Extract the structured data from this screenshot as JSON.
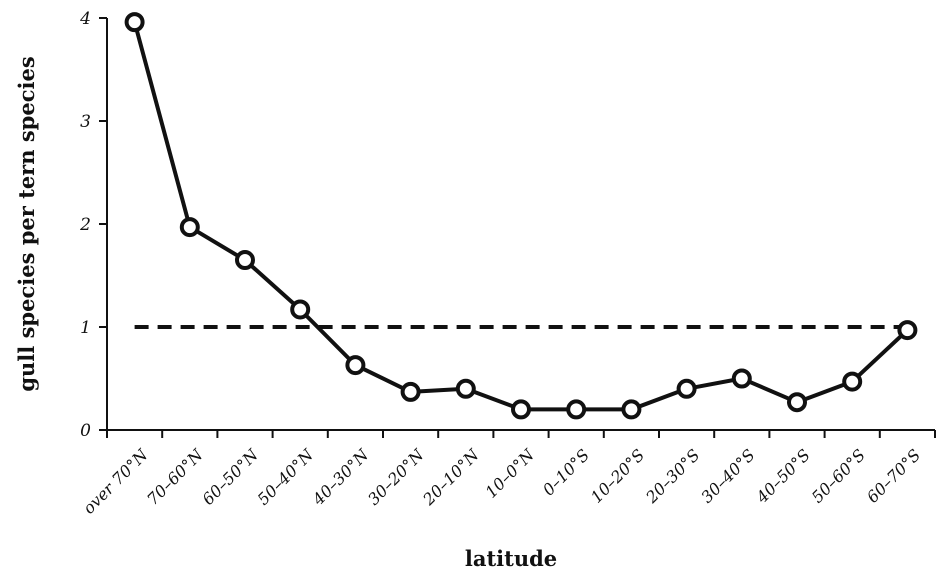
{
  "chart_data": {
    "type": "line",
    "xlabel": "latitude",
    "ylabel": "gull species per tern species",
    "ylim": [
      0,
      4
    ],
    "yticks": [
      "0",
      "1",
      "2",
      "3",
      "4"
    ],
    "grid": false,
    "categories": [
      "over 70°N",
      "70–60°N",
      "60–50°N",
      "50–40°N",
      "40–30°N",
      "30–20°N",
      "20–10°N",
      "10–0°N",
      "0–10°S",
      "10–20°S",
      "20–30°S",
      "30–40°S",
      "40–50°S",
      "50–60°S",
      "60–70°S"
    ],
    "series": [
      {
        "values": [
          3.96,
          1.97,
          1.65,
          1.17,
          0.63,
          0.37,
          0.4,
          0.2,
          0.2,
          0.2,
          0.4,
          0.5,
          0.27,
          0.47,
          0.97
        ]
      }
    ],
    "reference_line": {
      "y": 1,
      "style": "dashed"
    }
  }
}
